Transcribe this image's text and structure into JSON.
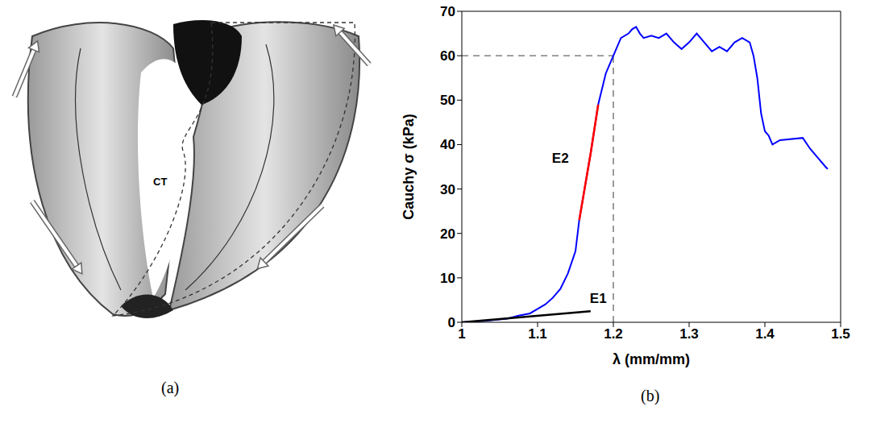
{
  "chart_data": {
    "type": "line",
    "caption": "(b)",
    "x_label": "λ (mm/mm)",
    "y_label": "Cauchy σ (kPa)",
    "xlim": [
      1,
      1.5
    ],
    "xticks": [
      1,
      1.1,
      1.2,
      1.3,
      1.4,
      1.5
    ],
    "ylim": [
      0,
      70
    ],
    "yticks": [
      0,
      10,
      20,
      30,
      40,
      50,
      60,
      70
    ],
    "grid": false,
    "series": [
      {
        "color": "#0000ff",
        "x": [
          1.0,
          1.03,
          1.06,
          1.075,
          1.09,
          1.1,
          1.11,
          1.12,
          1.13,
          1.14,
          1.15,
          1.155,
          1.16,
          1.17,
          1.18,
          1.19,
          1.2,
          1.21,
          1.22,
          1.225,
          1.23,
          1.235,
          1.24,
          1.25,
          1.26,
          1.27,
          1.28,
          1.29,
          1.3,
          1.31,
          1.32,
          1.33,
          1.34,
          1.35,
          1.36,
          1.37,
          1.38,
          1.385,
          1.39,
          1.395,
          1.4,
          1.405,
          1.41,
          1.42,
          1.45,
          1.46,
          1.47,
          1.48,
          1.483
        ],
        "values": [
          0,
          0.3,
          0.8,
          1.5,
          2,
          3,
          4,
          5.5,
          7.5,
          11,
          16,
          23,
          28,
          38,
          49,
          56,
          60,
          64,
          65,
          66,
          66.5,
          65,
          64,
          64.5,
          64,
          65,
          63,
          61.5,
          63,
          65,
          63,
          61,
          62,
          61,
          63,
          64,
          63,
          60,
          55,
          47,
          43,
          42,
          40,
          41,
          41.5,
          39,
          37,
          35,
          34.5
        ]
      },
      {
        "color": "#000000",
        "x": [
          1,
          1.17
        ],
        "values": [
          0,
          2.5
        ]
      },
      {
        "color": "#ff0000",
        "x": [
          1.155,
          1.16,
          1.17,
          1.18
        ],
        "values": [
          23,
          28,
          38,
          49
        ]
      }
    ],
    "annotations": [
      {
        "text": "E1",
        "x": 1.18,
        "y": 5.5
      },
      {
        "text": "E2",
        "x": 1.13,
        "y": 37
      }
    ],
    "guides": {
      "x": 1.2,
      "y": 60
    }
  },
  "panel_a": {
    "caption": "(a)",
    "label": "CT"
  }
}
